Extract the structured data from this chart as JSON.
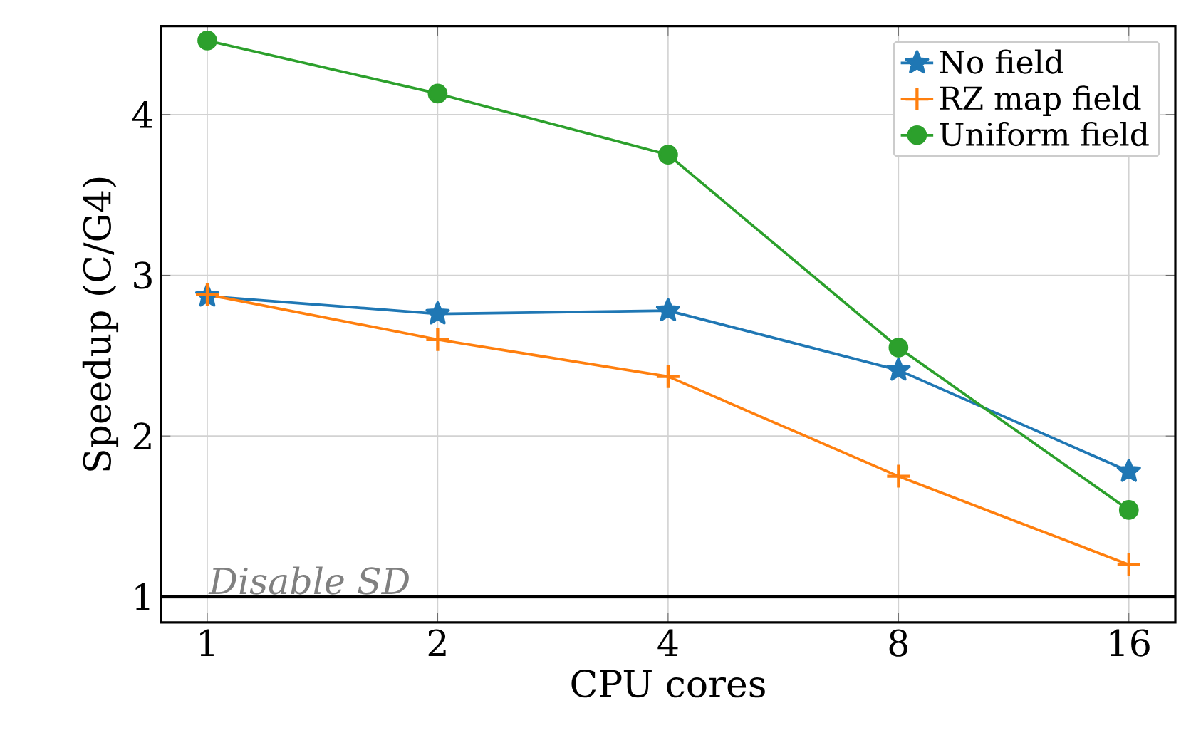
{
  "chart_data": {
    "type": "line",
    "xlabel": "CPU cores",
    "ylabel": "Speedup (C/G4)",
    "x": [
      1,
      2,
      4,
      8,
      16
    ],
    "log": "x",
    "xlim": [
      0.87,
      18.4
    ],
    "ylim": [
      0.84,
      4.55
    ],
    "xticks": [
      1,
      2,
      4,
      8,
      16
    ],
    "yticks": [
      1,
      2,
      3,
      4
    ],
    "grid": true,
    "legend": "top right",
    "series": [
      {
        "name": "No field",
        "color": "#1f77b4",
        "marker": "star",
        "values": [
          2.87,
          2.76,
          2.78,
          2.41,
          1.78
        ]
      },
      {
        "name": "RZ map field",
        "color": "#ff7f0e",
        "marker": "cross",
        "values": [
          2.88,
          2.6,
          2.37,
          1.75,
          1.2
        ]
      },
      {
        "name": "Uniform field",
        "color": "#2ca02c",
        "marker": "circle",
        "values": [
          4.46,
          4.13,
          3.75,
          2.55,
          1.54
        ]
      }
    ],
    "ref_lines": [
      {
        "axis": "y",
        "value": 1,
        "label": "Disable SD",
        "color": "#000000"
      }
    ]
  }
}
